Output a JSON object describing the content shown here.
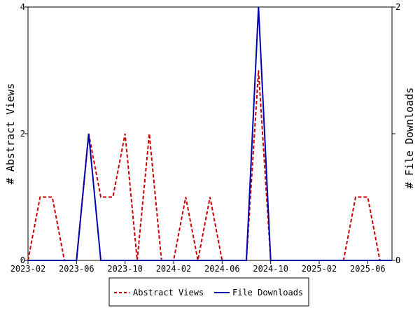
{
  "chart_data": {
    "type": "line",
    "x_dates": [
      "2023-02",
      "2023-03",
      "2023-04",
      "2023-05",
      "2023-06",
      "2023-07",
      "2023-08",
      "2023-09",
      "2023-10",
      "2023-11",
      "2023-12",
      "2024-01",
      "2024-02",
      "2024-03",
      "2024-04",
      "2024-05",
      "2024-06",
      "2024-07",
      "2024-08",
      "2024-09",
      "2024-10",
      "2024-11",
      "2024-12",
      "2025-01",
      "2025-02",
      "2025-03",
      "2025-04",
      "2025-05",
      "2025-06",
      "2025-07",
      "2025-08"
    ],
    "x_ticks": [
      "2023-02",
      "2023-06",
      "2023-10",
      "2024-02",
      "2024-06",
      "2024-10",
      "2025-02",
      "2025-06"
    ],
    "y_left": {
      "label": "# Abstract Views",
      "ticks": [
        "0",
        "2",
        "4"
      ],
      "range": [
        0,
        4
      ]
    },
    "y_right": {
      "label": "# File Downloads",
      "ticks": [
        "0",
        "1",
        "2"
      ],
      "tick_labels_shown": [
        "0",
        "2"
      ],
      "range": [
        0,
        2
      ]
    },
    "series": [
      {
        "name": "Abstract Views",
        "axis": "left",
        "color": "#cc0000",
        "style": "dashed",
        "values": [
          0,
          1,
          1,
          0,
          0,
          2,
          1,
          1,
          2,
          0,
          2,
          0,
          0,
          1,
          0,
          1,
          0,
          0,
          0,
          3,
          0,
          0,
          0,
          0,
          0,
          0,
          0,
          1,
          1,
          0,
          0
        ]
      },
      {
        "name": "File Downloads",
        "axis": "right",
        "color": "#0000aa",
        "style": "solid",
        "values": [
          0,
          0,
          0,
          0,
          0,
          1,
          0,
          0,
          0,
          0,
          0,
          0,
          0,
          0,
          0,
          0,
          0,
          0,
          0,
          2,
          0,
          0,
          0,
          0,
          0,
          0,
          0,
          0,
          0,
          0,
          0
        ]
      }
    ],
    "legend": {
      "placement": "bottom",
      "entries": [
        "Abstract Views",
        "File Downloads"
      ]
    },
    "grid": false
  }
}
